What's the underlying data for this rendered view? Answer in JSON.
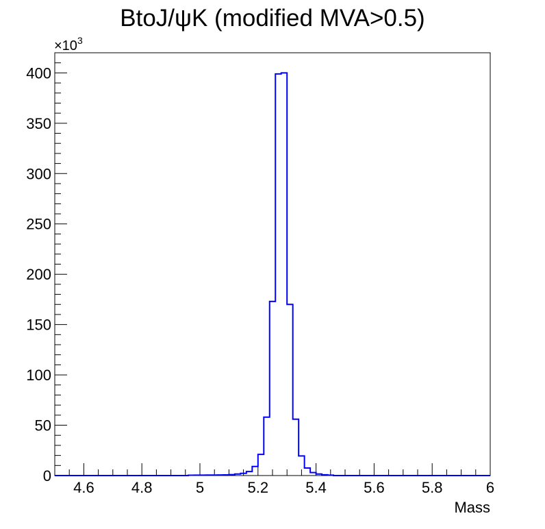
{
  "chart_data": {
    "type": "histogram",
    "title": "BtoJ/ψK (modified MVA>0.5)",
    "xlabel": "Mass",
    "ylabel": "",
    "y_multiplier_label": "×10",
    "y_multiplier_exponent": "3",
    "xlim": [
      4.5,
      6.0
    ],
    "ylim": [
      0,
      420
    ],
    "x_ticks": [
      4.6,
      4.8,
      5.0,
      5.2,
      5.4,
      5.6,
      5.8,
      6.0
    ],
    "x_tick_labels": [
      "4.6",
      "4.8",
      "5",
      "5.2",
      "5.4",
      "5.6",
      "5.8",
      "6"
    ],
    "y_ticks": [
      0,
      50,
      100,
      150,
      200,
      250,
      300,
      350,
      400
    ],
    "y_tick_labels": [
      "0",
      "50",
      "100",
      "150",
      "200",
      "250",
      "300",
      "350",
      "400"
    ],
    "line_color": "#0000ff",
    "bin_width": 0.02,
    "bins_start": [
      4.96,
      4.98,
      5.0,
      5.02,
      5.04,
      5.06,
      5.08,
      5.1,
      5.12,
      5.14,
      5.16,
      5.18,
      5.2,
      5.22,
      5.24,
      5.26,
      5.28,
      5.3,
      5.32,
      5.34,
      5.36,
      5.38,
      5.4,
      5.42,
      5.44
    ],
    "bins_end": 5.46,
    "counts": [
      0.3,
      0.4,
      0.4,
      0.5,
      0.5,
      0.6,
      0.7,
      0.9,
      1.5,
      2.2,
      4,
      9,
      21,
      58,
      173,
      399,
      400,
      170,
      56,
      19.5,
      7.5,
      3,
      1.5,
      0.8,
      0.4
    ]
  }
}
